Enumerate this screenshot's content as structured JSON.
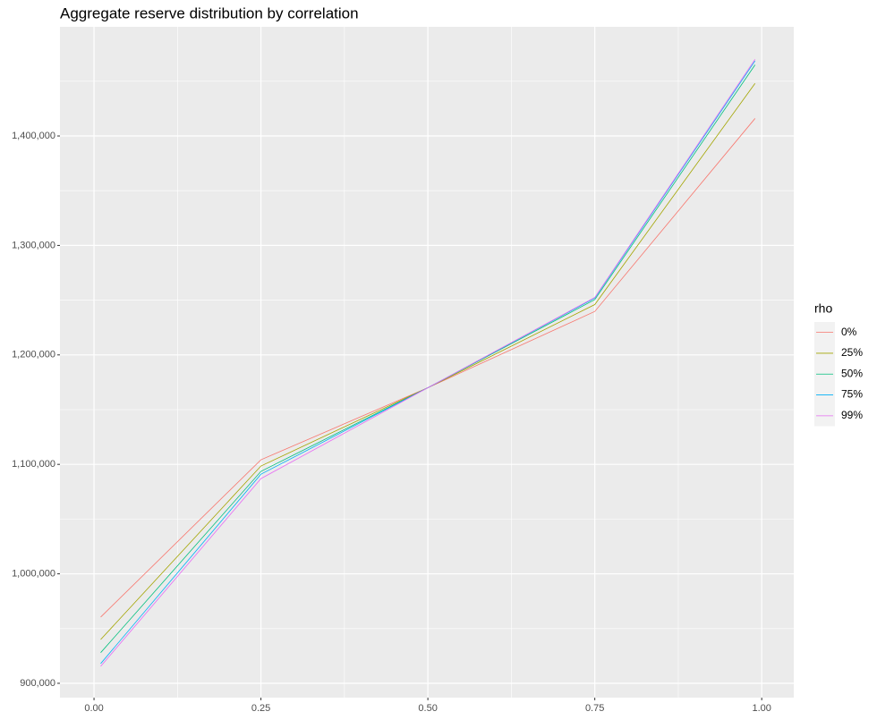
{
  "chart_data": {
    "type": "line",
    "title": "Aggregate reserve distribution by correlation",
    "x": [
      0.01,
      0.25,
      0.5,
      0.75,
      0.99
    ],
    "series": [
      {
        "name": "0%",
        "color": "#F8766D",
        "values": [
          960500,
          1104200,
          1170000,
          1239700,
          1416000
        ]
      },
      {
        "name": "25%",
        "color": "#A3A500",
        "values": [
          940000,
          1098500,
          1170000,
          1246000,
          1448000
        ]
      },
      {
        "name": "50%",
        "color": "#00BF7D",
        "values": [
          928000,
          1093600,
          1170000,
          1250500,
          1465000
        ]
      },
      {
        "name": "75%",
        "color": "#00B0F6",
        "values": [
          918000,
          1091000,
          1170000,
          1252000,
          1468600
        ]
      },
      {
        "name": "99%",
        "color": "#E76BF3",
        "values": [
          915500,
          1087000,
          1170000,
          1252500,
          1470000
        ]
      }
    ],
    "legend_title": "rho",
    "xlim": [
      -0.051,
      1.048
    ],
    "xticks": [
      {
        "value": 0,
        "label": "0.00"
      },
      0.25,
      {
        "value": 0.5,
        "label": "0.50"
      },
      0.75,
      {
        "value": 1,
        "label": "1.00"
      }
    ],
    "ylim": [
      886900,
      1499700
    ],
    "yticks": [
      {
        "value": 900000,
        "label": "900,000"
      },
      {
        "value": 1000000,
        "label": "1,000,000"
      },
      {
        "value": 1100000,
        "label": "1,100,000"
      },
      {
        "value": 1200000,
        "label": "1,200,000"
      },
      {
        "value": 1300000,
        "label": "1,300,000"
      },
      {
        "value": 1400000,
        "label": "1,400,000"
      }
    ],
    "grid": true,
    "legend": "right"
  }
}
